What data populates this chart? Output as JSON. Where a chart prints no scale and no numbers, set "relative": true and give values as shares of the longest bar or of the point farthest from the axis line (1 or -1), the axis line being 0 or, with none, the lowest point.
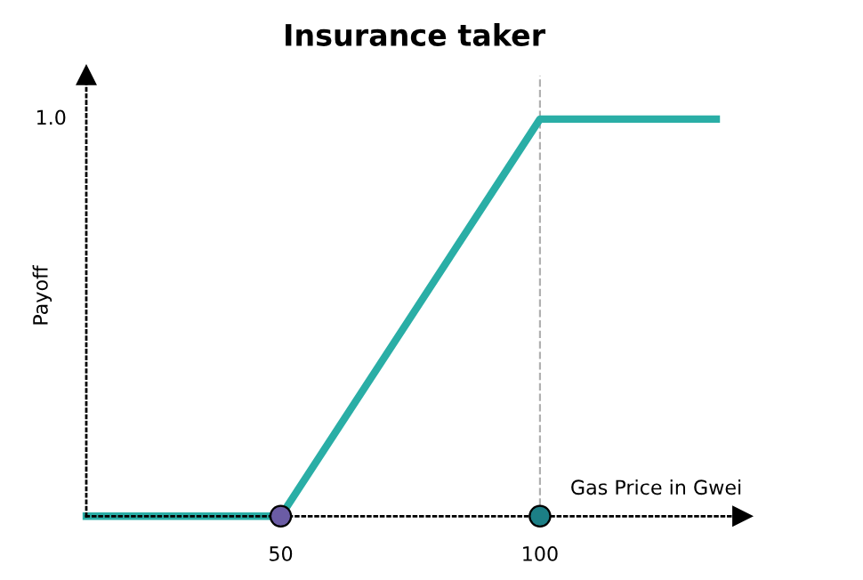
{
  "chart_data": {
    "type": "line",
    "title": "Insurance taker",
    "xlabel": "Gas Price in Gwei",
    "ylabel": "Payoff",
    "relative": true,
    "xlim": [
      12.5,
      139
    ],
    "xticks": [
      50,
      100
    ],
    "series": [
      {
        "color": "#2aaea6",
        "x": [
          12.5,
          50,
          100,
          134
        ],
        "values": [
          0,
          0,
          1,
          1
        ],
        "marker": "none"
      },
      {
        "type": "scatter",
        "x": [
          50,
          100
        ],
        "values": [
          0,
          0
        ],
        "colors": [
          "#6b5ca5",
          "#1c7f86"
        ],
        "marker": "circle"
      }
    ],
    "ref_lines": [
      {
        "axis": "x",
        "value": 100,
        "color": "#b0b0b0",
        "line_style": "dashed"
      }
    ],
    "annotations": [
      "1.0"
    ],
    "grid": false,
    "legend": false
  }
}
